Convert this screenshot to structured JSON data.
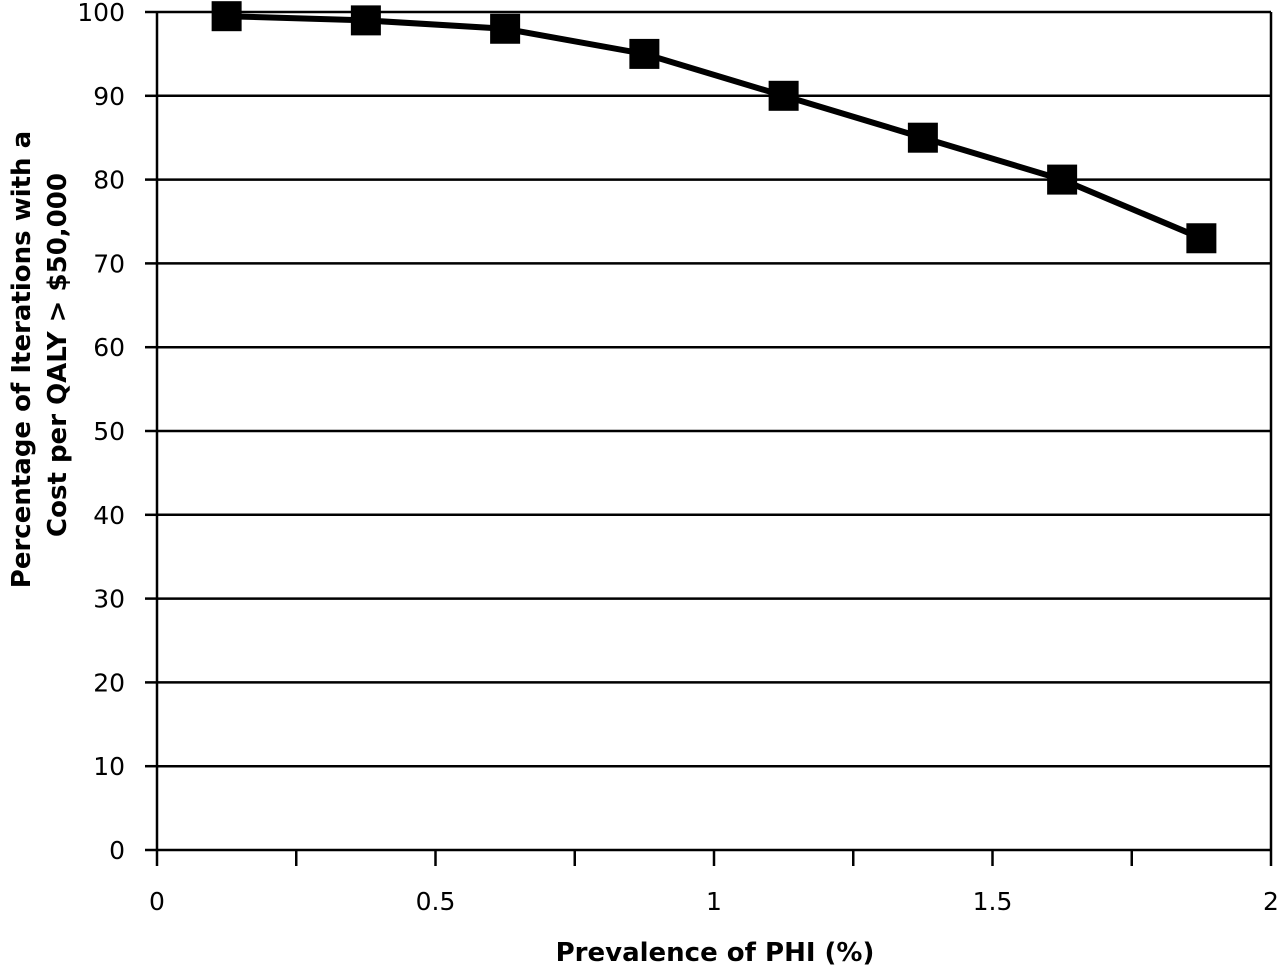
{
  "chart_data": {
    "type": "line",
    "title": "",
    "xlabel": "Prevalence of PHI (%)",
    "ylabel_lines": [
      "Percentage of Iterations with a",
      "Cost per QALY > $50,000"
    ],
    "x": [
      0.125,
      0.375,
      0.625,
      0.875,
      1.125,
      1.375,
      1.625,
      1.875
    ],
    "series": [
      {
        "values": [
          99.5,
          99,
          98,
          95,
          90,
          85,
          80,
          73
        ],
        "color": "#000000",
        "marker": "square"
      }
    ],
    "xlim": [
      0,
      2
    ],
    "ylim": [
      0,
      100
    ],
    "x_ticks": [
      0,
      0.25,
      0.5,
      0.75,
      1,
      1.25,
      1.5,
      1.75,
      2
    ],
    "x_tick_labels": [
      {
        "value": 0,
        "label": "0"
      },
      {
        "value": 0.5,
        "label": "0.5"
      },
      {
        "value": 1,
        "label": "1"
      },
      {
        "value": 1.5,
        "label": "1.5"
      },
      {
        "value": 2,
        "label": "2"
      }
    ],
    "y_ticks": [
      0,
      10,
      20,
      30,
      40,
      50,
      60,
      70,
      80,
      90,
      100
    ],
    "y_tick_labels": [
      "0",
      "10",
      "20",
      "30",
      "40",
      "50",
      "60",
      "70",
      "80",
      "90",
      "100"
    ],
    "grid": "horizontal",
    "legend": "none"
  }
}
